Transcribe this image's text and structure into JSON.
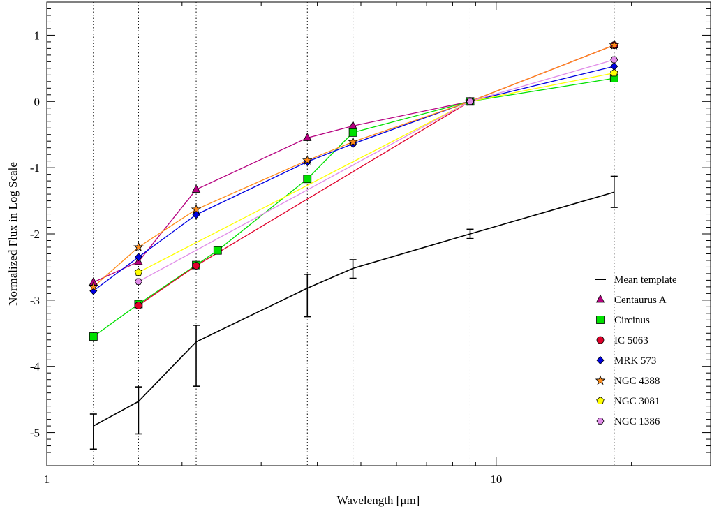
{
  "chart_data": {
    "type": "line",
    "xlabel": "Wavelength [μm]",
    "ylabel": "Normalized Flux in Log Scale",
    "xscale": "log",
    "xlim": [
      1,
      30
    ],
    "ylim": [
      -5.5,
      1.5
    ],
    "x_ticks": [
      1,
      10
    ],
    "x_tick_labels": [
      "1",
      "10"
    ],
    "y_ticks": [
      -5,
      -4,
      -3,
      -2,
      -1,
      0,
      1
    ],
    "y_tick_labels": [
      "-5",
      "-4",
      "-3",
      "-2",
      "-1",
      "0",
      "1"
    ],
    "vertical_reference_lines": [
      1.27,
      1.6,
      2.15,
      3.8,
      4.8,
      8.75,
      18.3
    ],
    "legend_position": "bottom-right",
    "grid": false,
    "mean_template": {
      "name": "Mean template",
      "color": "#000000",
      "x": [
        1.27,
        1.6,
        2.15,
        3.8,
        4.8,
        8.75,
        18.3
      ],
      "y": [
        -4.9,
        -4.53,
        -3.63,
        -2.82,
        -2.52,
        -2.0,
        -1.37
      ],
      "yerr_low": [
        -5.25,
        -5.02,
        -4.3,
        -3.25,
        -2.67,
        -2.07,
        -1.6
      ],
      "yerr_high": [
        -4.72,
        -4.31,
        -3.38,
        -2.61,
        -2.39,
        -1.93,
        -1.13
      ]
    },
    "series": [
      {
        "name": "Centaurus A",
        "marker": "triangle",
        "color": "#b5007f",
        "x": [
          1.27,
          1.6,
          2.15,
          3.8,
          4.8,
          8.75,
          18.3
        ],
        "y": [
          -2.73,
          -2.42,
          -1.33,
          -0.55,
          -0.37,
          0.0,
          0.85
        ]
      },
      {
        "name": "Circinus",
        "marker": "square",
        "color": "#00e000",
        "x": [
          1.27,
          1.6,
          2.15,
          2.4,
          3.8,
          4.8,
          8.75,
          18.3
        ],
        "y": [
          -3.55,
          -3.06,
          -2.47,
          -2.25,
          -1.17,
          -0.47,
          0.0,
          0.35
        ]
      },
      {
        "name": "IC 5063",
        "marker": "circle",
        "color": "#e0002a",
        "x": [
          1.6,
          2.15,
          8.75,
          18.3
        ],
        "y": [
          -3.08,
          -2.48,
          0.0,
          0.85
        ]
      },
      {
        "name": "MRK 573",
        "marker": "diamond",
        "color": "#0000e0",
        "x": [
          1.27,
          1.6,
          2.15,
          3.8,
          4.8,
          8.75,
          18.3
        ],
        "y": [
          -2.86,
          -2.35,
          -1.71,
          -0.91,
          -0.64,
          0.0,
          0.53
        ]
      },
      {
        "name": "NGC 4388",
        "marker": "star",
        "color": "#ff8c1a",
        "x": [
          1.27,
          1.6,
          2.15,
          3.8,
          4.8,
          8.75,
          18.3
        ],
        "y": [
          -2.8,
          -2.2,
          -1.63,
          -0.89,
          -0.61,
          0.0,
          0.85
        ]
      },
      {
        "name": "NGC 3081",
        "marker": "pentagon",
        "color": "#ffff00",
        "x": [
          1.6,
          8.75,
          18.3
        ],
        "y": [
          -2.58,
          0.0,
          0.43
        ]
      },
      {
        "name": "NGC 1386",
        "marker": "hexagon",
        "color": "#e08ce8",
        "x": [
          1.6,
          8.75,
          18.3
        ],
        "y": [
          -2.72,
          0.0,
          0.63
        ]
      }
    ]
  }
}
